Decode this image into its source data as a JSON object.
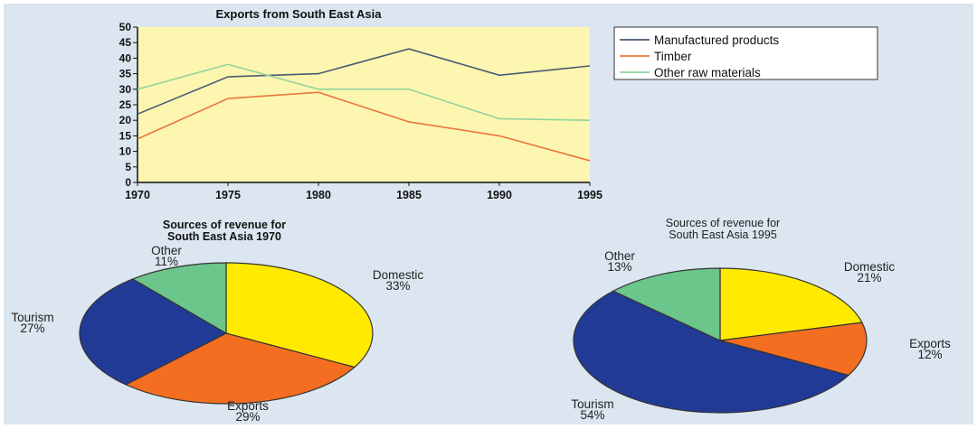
{
  "chart_data": [
    {
      "type": "line",
      "title": "Exports from South East Asia",
      "x": [
        1970,
        1975,
        1980,
        1985,
        1990,
        1995
      ],
      "ylim": [
        0,
        50
      ],
      "y_ticks": [
        0,
        5,
        10,
        15,
        20,
        25,
        30,
        35,
        40,
        45,
        50
      ],
      "plot_background": "#fdf6b0",
      "legend_position": "right",
      "series": [
        {
          "name": "Manufactured products",
          "color": "#4a5a74",
          "values": [
            22,
            34,
            35,
            43,
            34.5,
            37.5
          ]
        },
        {
          "name": "Timber",
          "color": "#e8773c",
          "values": [
            14,
            27,
            29,
            19.5,
            15,
            7
          ]
        },
        {
          "name": "Other raw materials",
          "color": "#90d49a",
          "values": [
            30,
            38,
            30,
            30,
            20.5,
            20
          ]
        }
      ]
    },
    {
      "type": "pie",
      "title": [
        "Sources of revenue for",
        "South East Asia 1970"
      ],
      "slices": [
        {
          "label": "Domestic",
          "value": 33,
          "value_text": "33%",
          "color": "#ffea00"
        },
        {
          "label": "Exports",
          "value": 29,
          "value_text": "29%",
          "color": "#f36e20"
        },
        {
          "label": "Tourism",
          "value": 27,
          "value_text": "27%",
          "color": "#213a96"
        },
        {
          "label": "Other",
          "value": 11,
          "value_text": "11%",
          "color": "#6cc58a"
        }
      ]
    },
    {
      "type": "pie",
      "title": [
        "Sources of revenue for",
        "South East Asia 1995"
      ],
      "slices": [
        {
          "label": "Domestic",
          "value": 21,
          "value_text": "21%",
          "color": "#ffea00"
        },
        {
          "label": "Exports",
          "value": 12,
          "value_text": "12%",
          "color": "#f36e20"
        },
        {
          "label": "Tourism",
          "value": 54,
          "value_text": "54%",
          "color": "#213a96"
        },
        {
          "label": "Other",
          "value": 13,
          "value_text": "13%",
          "color": "#6cc58a"
        }
      ]
    }
  ]
}
